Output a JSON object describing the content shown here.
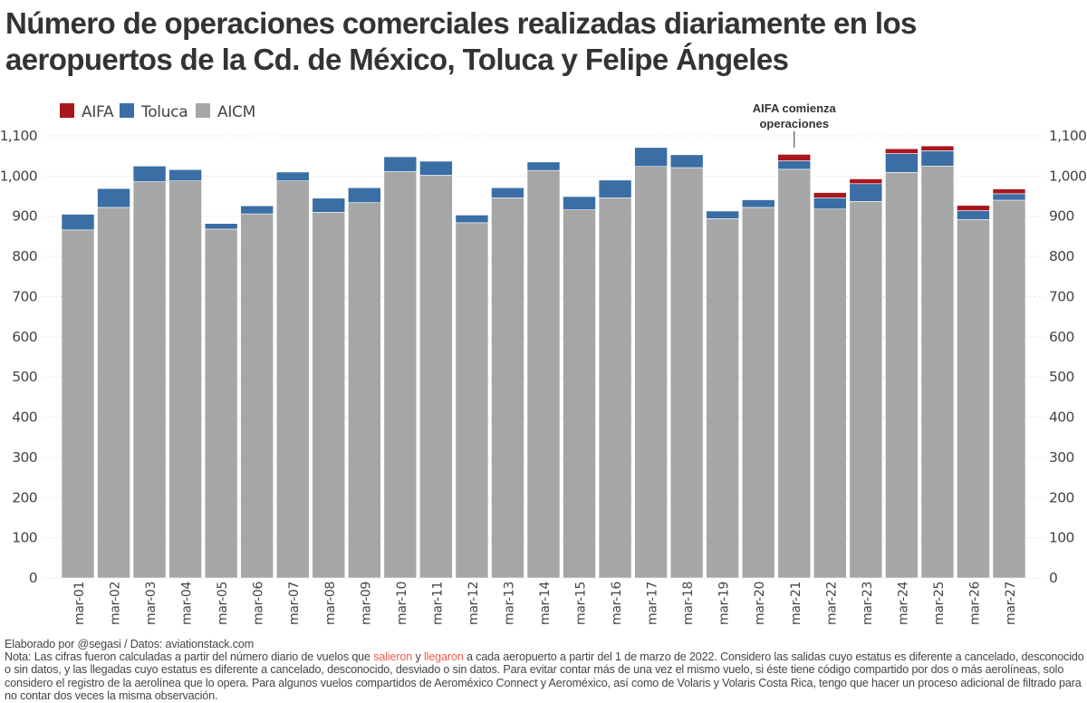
{
  "title": "Número de operaciones comerciales realizadas diariamente en los aeropuertos de la Cd. de México, Toluca y Felipe Ángeles",
  "chart_data": {
    "type": "bar",
    "stacked": true,
    "title": "Número de operaciones comerciales realizadas diariamente en los aeropuertos de la Cd. de México, Toluca y Felipe Ángeles",
    "xlabel": "",
    "ylabel": "",
    "ylim": [
      0,
      1100
    ],
    "yticks": [
      0,
      100,
      200,
      300,
      400,
      500,
      600,
      700,
      800,
      900,
      1000,
      1100
    ],
    "ytick_labels": [
      "0",
      "100",
      "200",
      "300",
      "400",
      "500",
      "600",
      "700",
      "800",
      "900",
      "1,000",
      "1,100"
    ],
    "grid": true,
    "legend_position": "top-left",
    "categories": [
      "mar-01",
      "mar-02",
      "mar-03",
      "mar-04",
      "mar-05",
      "mar-06",
      "mar-07",
      "mar-08",
      "mar-09",
      "mar-10",
      "mar-11",
      "mar-12",
      "mar-13",
      "mar-14",
      "mar-15",
      "mar-16",
      "mar-17",
      "mar-18",
      "mar-19",
      "mar-20",
      "mar-21",
      "mar-22",
      "mar-23",
      "mar-24",
      "mar-25",
      "mar-26",
      "mar-27"
    ],
    "series": [
      {
        "name": "AICM",
        "color": "#a6a6a6",
        "values": [
          866,
          922,
          986,
          988,
          868,
          906,
          988,
          910,
          934,
          1011,
          1002,
          884,
          946,
          1014,
          916,
          946,
          1024,
          1021,
          894,
          922,
          1017,
          918,
          937,
          1009,
          1025,
          892,
          940
        ]
      },
      {
        "name": "Toluca",
        "color": "#3a6ea5",
        "values": [
          39,
          47,
          39,
          28,
          14,
          20,
          22,
          35,
          37,
          37,
          35,
          19,
          25,
          21,
          33,
          44,
          47,
          32,
          19,
          19,
          21,
          28,
          44,
          47,
          38,
          22,
          16
        ]
      },
      {
        "name": "AIFA",
        "color": "#a8161c",
        "values": [
          0,
          0,
          0,
          0,
          0,
          0,
          0,
          0,
          0,
          0,
          0,
          0,
          0,
          0,
          0,
          0,
          0,
          0,
          0,
          0,
          16,
          13,
          12,
          12,
          12,
          13,
          12
        ]
      }
    ],
    "legend_order": [
      "AIFA",
      "Toluca",
      "AICM"
    ],
    "annotations": [
      {
        "text_line1": "AIFA comienza",
        "text_line2": "operaciones",
        "category": "mar-21"
      }
    ]
  },
  "footer": {
    "credit": "Elaborado por @segasi / Datos: aviationstack.com",
    "note_part1": "Nota: Las cifras fueron calculadas a partir del número diario de vuelos que ",
    "highlight1": "salieron",
    "note_part2": " y ",
    "highlight2": "llegaron",
    "note_part3": " a cada aeropuerto a partir del 1 de marzo de 2022. Considero las salidas cuyo estatus es diferente a cancelado, desconocido o sin datos, y las llegadas cuyo estatus es diferente a cancelado, desconocido, desviado o sin datos. Para evitar contar más de una vez el mismo vuelo, si éste tiene código compartido por dos o más aerolíneas, solo considero el registro de la aerolínea que lo opera. Para algunos vuelos compartidos de Aeroméxico Connect y Aeroméxico, así como de Volaris y Volaris Costa Rica, tengo que hacer un proceso adicional de filtrado para no contar dos veces la misma observación."
  }
}
